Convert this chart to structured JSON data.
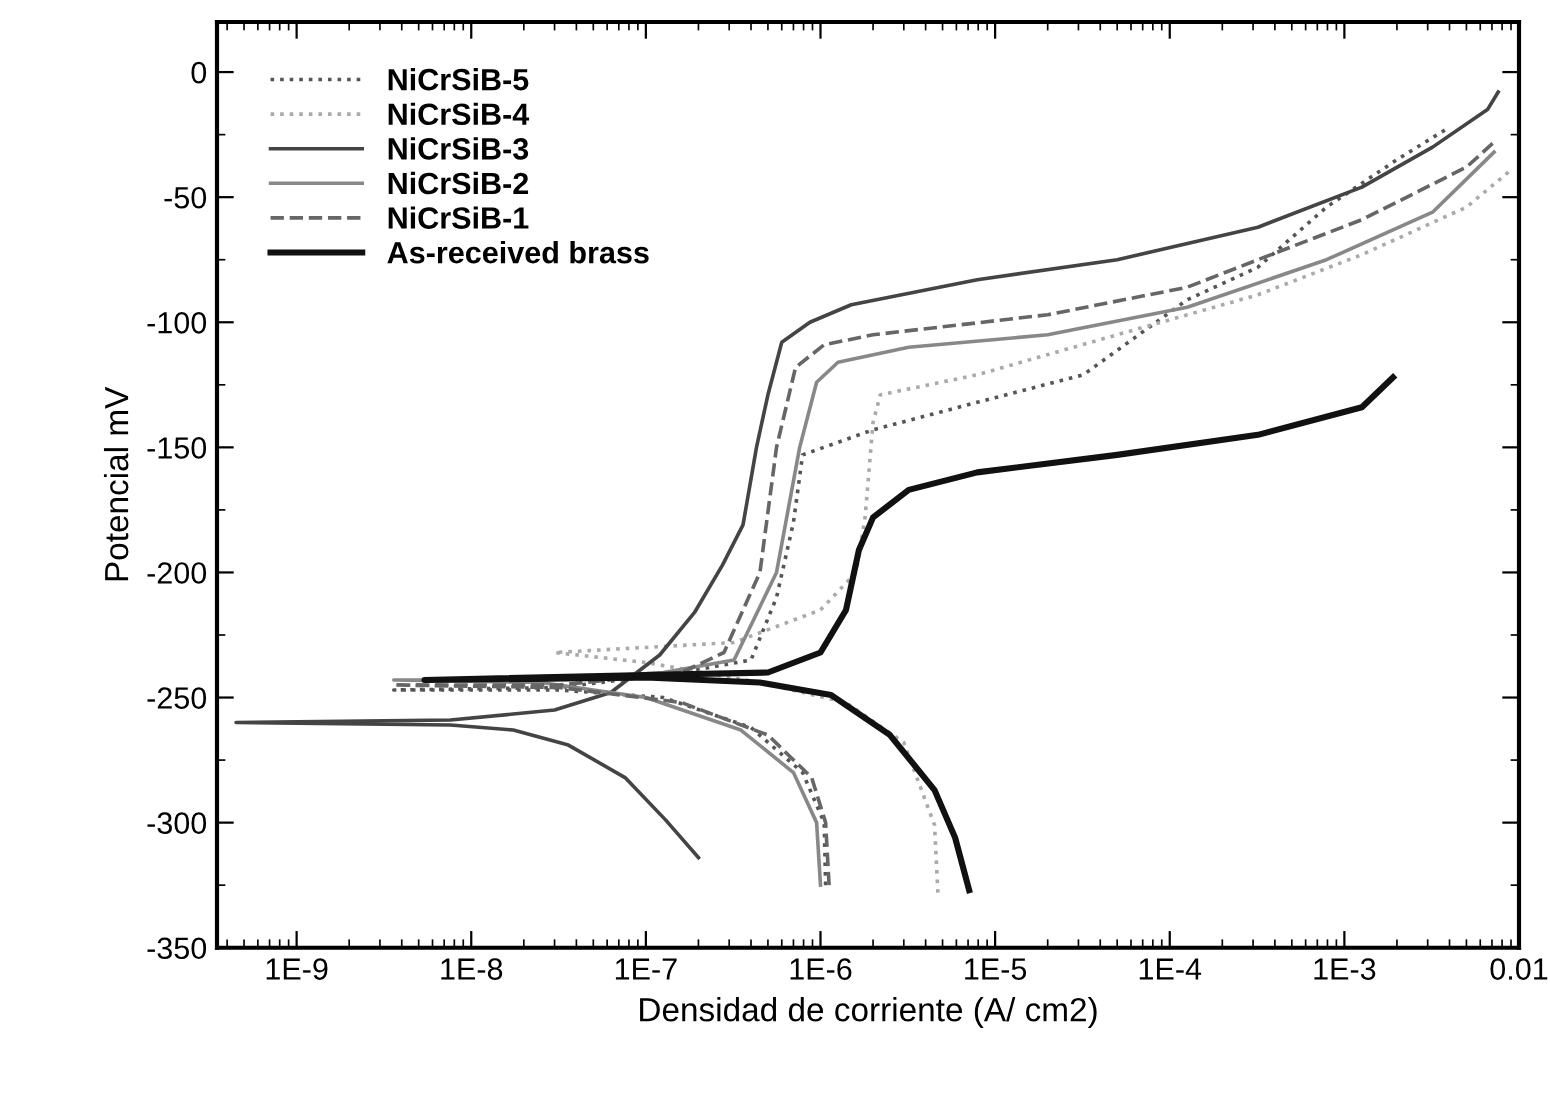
{
  "chart_data": {
    "type": "line",
    "xlabel": "Densidad de corriente (A/ cm2)",
    "ylabel": "Potencial mV",
    "log": "x",
    "xlim": [
      3.5e-10,
      0.01
    ],
    "xticks": [
      {
        "value": 1e-09,
        "label": "1E-9"
      },
      {
        "value": 1e-08,
        "label": "1E-8"
      },
      {
        "value": 1e-07,
        "label": "1E-7"
      },
      {
        "value": 1e-06,
        "label": "1E-6"
      },
      {
        "value": 1e-05,
        "label": "1E-5"
      },
      {
        "value": 0.0001,
        "label": "1E-4"
      },
      {
        "value": 0.001,
        "label": "1E-3"
      },
      {
        "value": 0.01,
        "label": "0.01"
      }
    ],
    "ylim": [
      -350,
      20
    ],
    "yticks": [
      -350,
      -300,
      -250,
      -200,
      -150,
      -100,
      -50,
      0
    ],
    "legend": "top left",
    "series": [
      {
        "name": "NiCrSiB-5",
        "color": "#555555",
        "line_style": "dotted",
        "x": [
          1.07e-06,
          1.05e-06,
          7.9e-07,
          4e-07,
          1.26e-07,
          3.2e-08,
          3.6e-09,
          3.2e-08,
          1.6e-07,
          4e-07,
          5.6e-07,
          7e-07,
          7.9e-07,
          2e-06,
          7.9e-06,
          3.2e-05,
          0.000126,
          0.00032,
          0.00079,
          0.002,
          0.0038
        ],
        "values": [
          -325,
          -300,
          -280,
          -262,
          -250,
          -247,
          -247,
          -246,
          -240,
          -235,
          -210,
          -180,
          -153,
          -143,
          -132,
          -121,
          -91,
          -78,
          -54,
          -35,
          -23
        ]
      },
      {
        "name": "NiCrSiB-4",
        "color": "#aaaaaa",
        "line_style": "dotted",
        "x": [
          4.7e-06,
          4.5e-06,
          3e-06,
          1.4e-06,
          4.5e-07,
          1e-07,
          3e-08,
          3.2e-07,
          1e-06,
          1.6e-06,
          1.8e-06,
          2e-06,
          2.2e-06,
          7.9e-06,
          5e-05,
          0.00032,
          0.00126,
          0.005,
          0.0087
        ],
        "values": [
          -328,
          -301,
          -268,
          -252,
          -244,
          -236,
          -232,
          -228,
          -215,
          -200,
          -178,
          -140,
          -129,
          -121,
          -105,
          -89,
          -73,
          -54,
          -40
        ]
      },
      {
        "name": "NiCrSiB-3",
        "color": "#444444",
        "line_style": "solid",
        "x": [
          2e-07,
          1.3e-07,
          7.6e-08,
          3.6e-08,
          1.74e-08,
          7.6e-09,
          4.5e-10,
          7.6e-09,
          3e-08,
          6.3e-08,
          1.2e-07,
          1.9e-07,
          2.75e-07,
          3.6e-07,
          4.3e-07,
          5e-07,
          6e-07,
          8.7e-07,
          1.5e-06,
          7.9e-06,
          5e-05,
          0.00032,
          0.00126,
          0.0032,
          0.0066,
          0.0076
        ],
        "values": [
          -314,
          -299,
          -282,
          -269,
          -263,
          -261,
          -260,
          -259,
          -255,
          -248,
          -233,
          -216,
          -197,
          -181,
          -150,
          -129,
          -108,
          -100,
          -93,
          -83,
          -75,
          -62,
          -46,
          -30,
          -15,
          -8
        ]
      },
      {
        "name": "NiCrSiB-2",
        "color": "#888888",
        "line_style": "solid",
        "x": [
          1e-06,
          9.5e-07,
          7e-07,
          3.5e-07,
          1e-07,
          2.5e-08,
          3.6e-09,
          2.5e-08,
          1.26e-07,
          3.2e-07,
          5.6e-07,
          7.6e-07,
          9.5e-07,
          1.26e-06,
          3.2e-06,
          2e-05,
          0.000126,
          0.00079,
          0.0032,
          0.0072
        ],
        "values": [
          -325,
          -300,
          -280,
          -263,
          -250,
          -244,
          -243,
          -243,
          -240,
          -235,
          -200,
          -150,
          -124,
          -116,
          -110,
          -105,
          -94,
          -75,
          -56,
          -32
        ]
      },
      {
        "name": "NiCrSiB-1",
        "color": "#666666",
        "line_style": "dashed",
        "x": [
          1.12e-06,
          1.07e-06,
          8.9e-07,
          5e-07,
          1.6e-07,
          3.2e-08,
          3.6e-09,
          3.2e-08,
          1.6e-07,
          2.8e-07,
          4.5e-07,
          5.6e-07,
          7.2e-07,
          1.05e-06,
          2e-06,
          2e-05,
          0.000126,
          0.00032,
          0.00126,
          0.005,
          0.0072
        ],
        "values": [
          -325,
          -300,
          -282,
          -265,
          -252,
          -246,
          -245,
          -245,
          -240,
          -232,
          -200,
          -150,
          -118,
          -109,
          -105,
          -97,
          -86,
          -75,
          -59,
          -38,
          -28
        ]
      },
      {
        "name": "As-received brass",
        "color": "#111111",
        "line_style": "solid",
        "x": [
          7.1e-06,
          5.9e-06,
          4.5e-06,
          2.5e-06,
          1.15e-06,
          4.5e-07,
          1e-07,
          5.4e-09,
          1e-07,
          5e-07,
          1e-06,
          1.4e-06,
          1.66e-06,
          2e-06,
          3.2e-06,
          7.9e-06,
          5e-05,
          0.00032,
          0.00126,
          0.0019
        ],
        "values": [
          -327,
          -306,
          -287,
          -265,
          -249,
          -244,
          -242,
          -243,
          -241,
          -240,
          -232,
          -215,
          -191,
          -178,
          -167,
          -160,
          -153,
          -145,
          -134,
          -122
        ]
      }
    ]
  }
}
